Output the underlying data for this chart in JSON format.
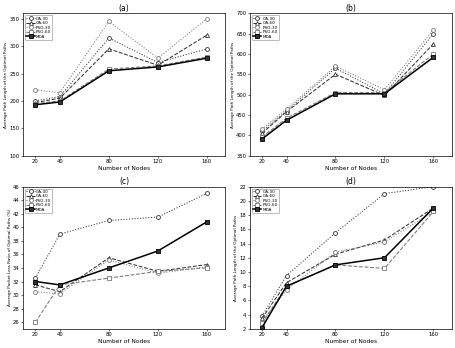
{
  "x": [
    20,
    40,
    80,
    120,
    160
  ],
  "legend_labels": [
    "GA-30",
    "GA-60",
    "PSO-30",
    "PSO-60",
    "MDA"
  ],
  "subplot_a": {
    "title": "(a)",
    "xlabel": "Number of Nodes",
    "ylabel": "Average Path Length of the Optimal Paths",
    "ylim": [
      100,
      360
    ],
    "yticks": [
      100,
      150,
      200,
      250,
      300,
      350
    ],
    "series": {
      "GA-30": [
        200,
        208,
        315,
        270,
        295
      ],
      "GA-60": [
        197,
        205,
        295,
        265,
        320
      ],
      "PSO-30": [
        220,
        215,
        345,
        278,
        350
      ],
      "PSO-60": [
        195,
        200,
        258,
        264,
        280
      ],
      "MDA": [
        193,
        198,
        255,
        262,
        278
      ]
    }
  },
  "subplot_b": {
    "title": "(b)",
    "xlabel": "Number of Nodes",
    "ylabel": "Average Path Length of the Optimal Paths",
    "ylim": [
      350,
      700
    ],
    "yticks": [
      350,
      400,
      450,
      500,
      550,
      600,
      650,
      700
    ],
    "series": {
      "GA-30": [
        410,
        460,
        565,
        502,
        650
      ],
      "GA-60": [
        405,
        458,
        550,
        498,
        625
      ],
      "PSO-30": [
        415,
        465,
        570,
        512,
        660
      ],
      "PSO-60": [
        396,
        442,
        505,
        505,
        600
      ],
      "MDA": [
        391,
        437,
        502,
        502,
        592
      ]
    }
  },
  "subplot_c": {
    "title": "(c)",
    "xlabel": "Number of Nodes",
    "ylabel": "Average Packet Loss Ratio of Optimal Paths (%)",
    "ylim": [
      25,
      46
    ],
    "yticks": [
      26,
      28,
      30,
      32,
      34,
      36,
      38,
      40,
      42,
      44,
      46
    ],
    "series": {
      "GA-30": [
        32.5,
        39.0,
        41.0,
        41.5,
        45.0
      ],
      "GA-60": [
        31.5,
        30.5,
        35.5,
        33.5,
        34.5
      ],
      "PSO-30": [
        30.5,
        30.2,
        35.2,
        33.2,
        34.2
      ],
      "PSO-60": [
        26.0,
        31.5,
        32.5,
        33.5,
        34.0
      ],
      "MDA": [
        32.0,
        31.5,
        34.0,
        36.5,
        40.8
      ]
    }
  },
  "subplot_d": {
    "title": "(d)",
    "xlabel": "Number of Nodes",
    "ylabel": "Average Path Length of the Optimal Paths",
    "ylim": [
      2,
      22
    ],
    "yticks": [
      2,
      4,
      6,
      8,
      10,
      12,
      14,
      16,
      18,
      20,
      22
    ],
    "series": {
      "GA-30": [
        3.8,
        9.5,
        15.5,
        21.0,
        22.0
      ],
      "GA-60": [
        3.5,
        8.5,
        12.5,
        14.5,
        19.0
      ],
      "PSO-30": [
        3.0,
        7.5,
        12.8,
        14.2,
        18.5
      ],
      "PSO-60": [
        2.8,
        8.0,
        11.0,
        10.5,
        18.5
      ],
      "MDA": [
        2.2,
        8.0,
        11.0,
        12.0,
        19.0
      ]
    }
  }
}
